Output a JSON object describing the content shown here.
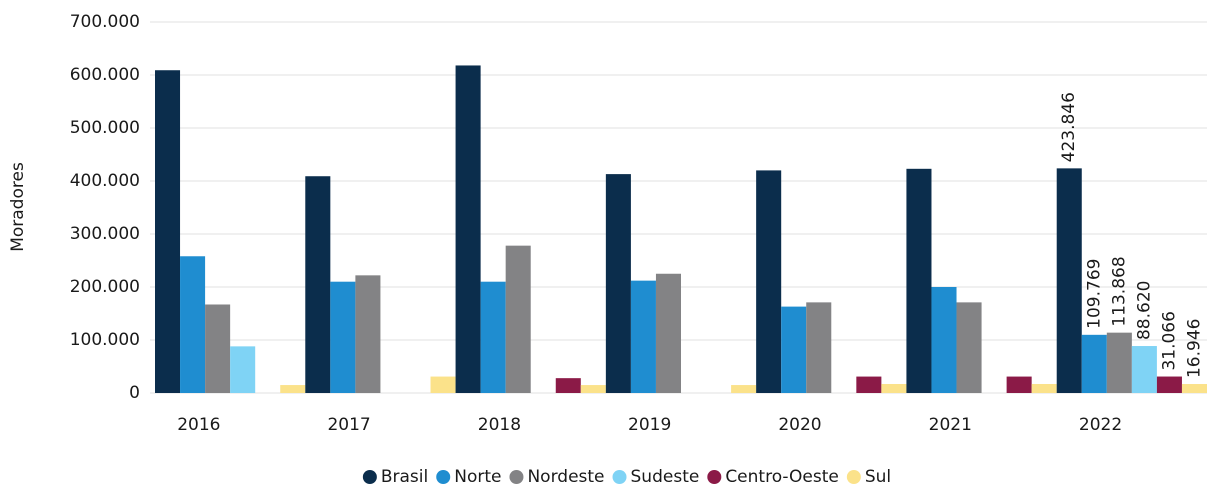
{
  "chart_data": {
    "type": "bar",
    "y_label": "Moradores",
    "categories": [
      "2016",
      "2017",
      "2018",
      "2019",
      "2020",
      "2021",
      "2022"
    ],
    "series": [
      {
        "name": "Brasil",
        "color": "#0b2d4c",
        "values": [
          609000,
          409000,
          618000,
          413000,
          420000,
          423000,
          423846
        ],
        "value_labels": [
          null,
          null,
          null,
          null,
          null,
          null,
          "423.846"
        ]
      },
      {
        "name": "Norte",
        "color": "#1f8dd0",
        "values": [
          258000,
          210000,
          210000,
          212000,
          163000,
          200000,
          109769
        ],
        "value_labels": [
          null,
          null,
          null,
          null,
          null,
          null,
          "109.769"
        ]
      },
      {
        "name": "Nordeste",
        "color": "#838385",
        "values": [
          167000,
          222000,
          278000,
          225000,
          171000,
          171000,
          113868
        ],
        "value_labels": [
          null,
          null,
          null,
          null,
          null,
          null,
          "113.868"
        ]
      },
      {
        "name": "Sudeste",
        "color": "#7fd3f5",
        "values": [
          88000,
          0,
          0,
          0,
          0,
          0,
          88620
        ],
        "value_labels": [
          null,
          null,
          null,
          null,
          null,
          null,
          "88.620"
        ]
      },
      {
        "name": "Centro-Oeste",
        "color": "#8b1a47",
        "values": [
          0,
          0,
          28000,
          0,
          31000,
          31000,
          31066
        ],
        "value_labels": [
          null,
          null,
          null,
          null,
          null,
          null,
          "31.066"
        ]
      },
      {
        "name": "Sul",
        "color": "#fbe28a",
        "values": [
          15000,
          31000,
          15000,
          15000,
          17000,
          17000,
          16946
        ],
        "value_labels": [
          null,
          null,
          null,
          null,
          null,
          null,
          "16.946"
        ]
      }
    ],
    "ylim": [
      0,
      700000
    ],
    "yticks": [
      0,
      {
        "value": 100000,
        "label": "100.000"
      },
      {
        "value": 200000,
        "label": "200.000"
      },
      {
        "value": 300000,
        "label": "300.000"
      },
      {
        "value": 400000,
        "label": "400.000"
      },
      {
        "value": 500000,
        "label": "500.000"
      },
      {
        "value": 600000,
        "label": "600.000"
      },
      {
        "value": 700000,
        "label": "700.000"
      }
    ],
    "grid": true,
    "legend": "bottom"
  }
}
